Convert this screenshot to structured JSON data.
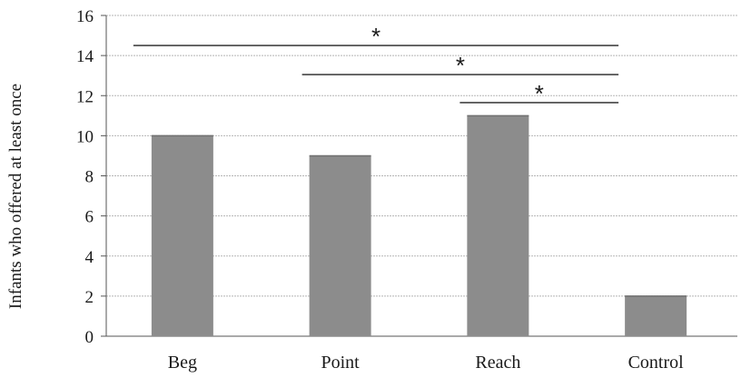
{
  "chart_data": {
    "type": "bar",
    "title": "",
    "xlabel": "",
    "ylabel": "Infants  who offered at least once",
    "categories": [
      "Beg",
      "Point",
      "Reach",
      "Control"
    ],
    "values": [
      10,
      9,
      11,
      2
    ],
    "ylim": [
      0,
      16
    ],
    "yticks": [
      0,
      2,
      4,
      6,
      8,
      10,
      12,
      14,
      16
    ],
    "grid": true,
    "legend": "none",
    "bar_color": "#8c8c8c",
    "significance": [
      {
        "from": "Beg",
        "to": "Control",
        "label": "*"
      },
      {
        "from": "Point",
        "to": "Control",
        "label": "*"
      },
      {
        "from": "Reach",
        "to": "Control",
        "label": "*"
      }
    ]
  }
}
